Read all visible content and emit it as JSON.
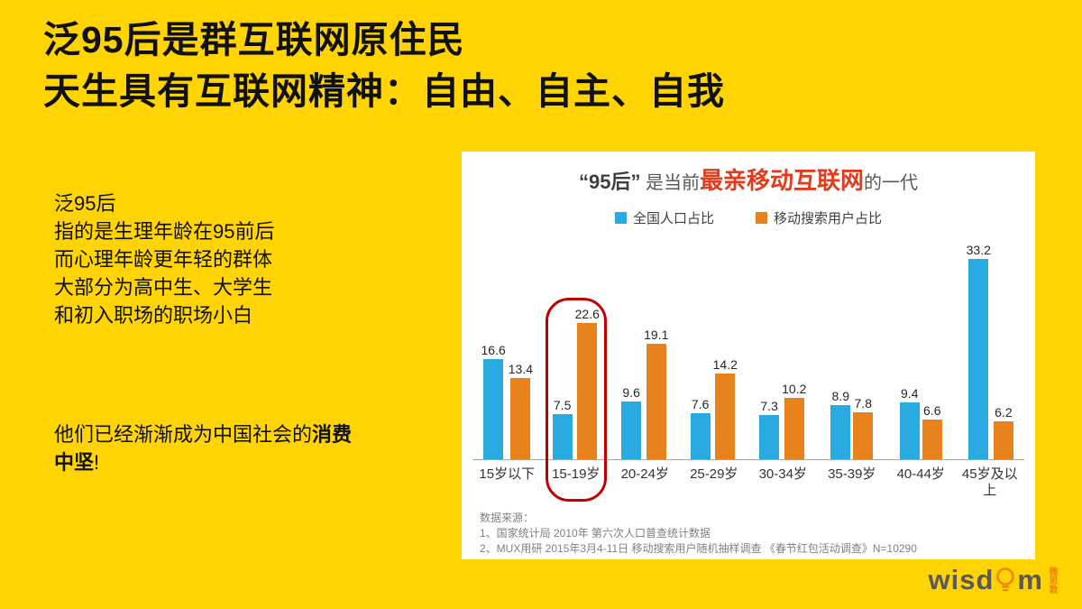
{
  "colors": {
    "background": "#FFD400",
    "series_population": "#29ABE2",
    "series_mobile_search": "#E8821C",
    "title_highlight_red": "#E23B1E",
    "highlight_outline_red": "#C00000"
  },
  "header": {
    "line1": "泛95后是群互联网原住民",
    "line2": "天生具有互联网精神：自由、自主、自我"
  },
  "intro": {
    "lines": [
      "泛95后",
      "指的是生理年龄在95前后",
      "而心理年龄更年轻的群体",
      "大部分为高中生、大学生",
      "和初入职场的职场小白"
    ],
    "conclusion_prefix": "他们已经渐渐成为中国社会的",
    "conclusion_bold": "消费中坚",
    "conclusion_suffix": "!"
  },
  "panel": {
    "title": {
      "quote": "“95后”",
      "mid": " 是当前",
      "highlight": "最亲移动互联网",
      "suffix": "的一代"
    }
  },
  "chart_data": {
    "type": "bar",
    "title": "“95后” 是当前最亲移动互联网的一代",
    "categories": [
      "15岁以下",
      "15-19岁",
      "20-24岁",
      "25-29岁",
      "30-34岁",
      "35-39岁",
      "40-44岁",
      "45岁及以上"
    ],
    "series": [
      {
        "name": "全国人口占比",
        "color": "#29ABE2",
        "values": [
          16.6,
          7.5,
          9.6,
          7.6,
          7.3,
          8.9,
          9.4,
          33.2
        ]
      },
      {
        "name": "移动搜索用户占比",
        "color": "#E8821C",
        "values": [
          13.4,
          22.6,
          19.1,
          14.2,
          10.2,
          7.8,
          6.6,
          6.2
        ]
      }
    ],
    "highlight_category_index": 1,
    "ylim": [
      0,
      35
    ],
    "legend_position": "top",
    "grid": false,
    "value_labels": true
  },
  "sources": {
    "label": "数据来源：",
    "items": [
      "1、国家统计局 2010年 第六次人口普查统计数据",
      "2、MUX用研 2015年3月4-11日 移动搜索用户随机抽样调查 《春节红包活动调查》N=10290"
    ]
  },
  "logo": {
    "text_before": "wisd",
    "text_after": "m",
    "vertical_text": "微思敦"
  }
}
